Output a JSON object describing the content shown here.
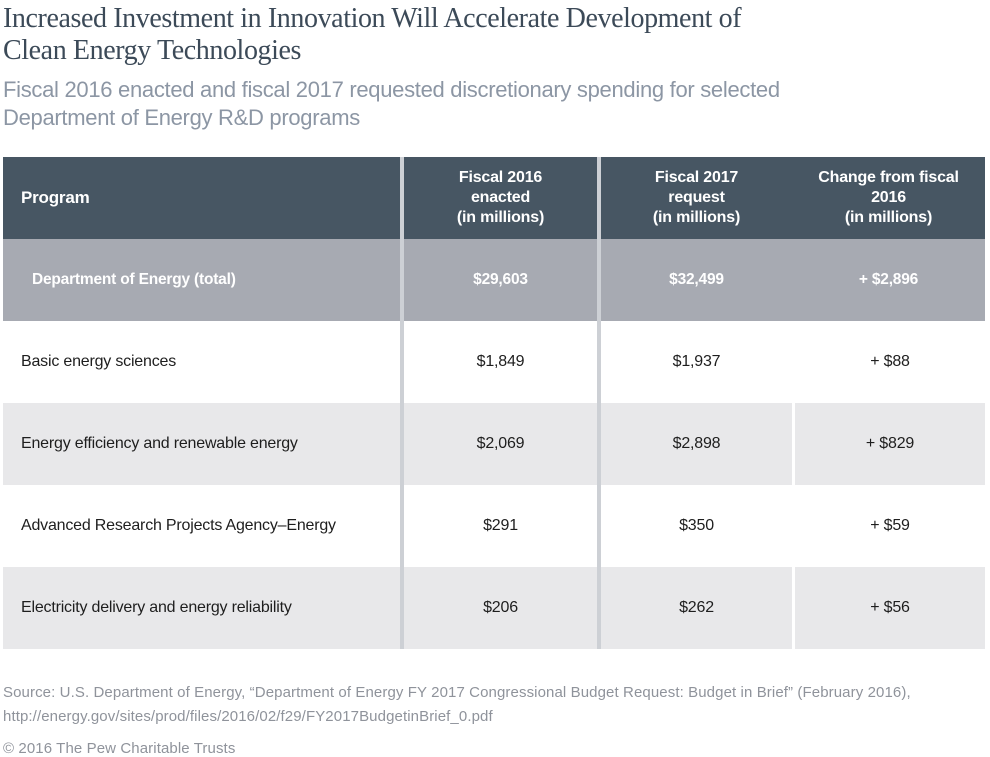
{
  "header": {
    "title_line1": "Increased Investment in Innovation Will Accelerate Development of",
    "title_line2": "Clean Energy Technologies",
    "subtitle_line1": "Fiscal 2016 enacted and fiscal 2017 requested discretionary spending for selected",
    "subtitle_line2": "Department of Energy R&D programs"
  },
  "table": {
    "columns": [
      {
        "label_lines": [
          "Program"
        ]
      },
      {
        "label_lines": [
          "Fiscal 2016",
          "enacted",
          "(in millions)"
        ]
      },
      {
        "label_lines": [
          "Fiscal 2017",
          "request",
          "(in millions)"
        ]
      },
      {
        "label_lines": [
          "Change from fiscal",
          "2016",
          "(in millions)"
        ]
      }
    ],
    "total_row": {
      "program": "Department of Energy (total)",
      "fy2016": "$29,603",
      "fy2017": "$32,499",
      "change": "+ $2,896"
    },
    "rows": [
      {
        "program": "Basic energy sciences",
        "fy2016": "$1,849",
        "fy2017": "$1,937",
        "change": "+ $88"
      },
      {
        "program": "Energy efficiency and renewable energy",
        "fy2016": "$2,069",
        "fy2017": "$2,898",
        "change": "+ $829"
      },
      {
        "program": "Advanced Research Projects Agency–Energy",
        "fy2016": "$291",
        "fy2017": "$350",
        "change": "+ $59"
      },
      {
        "program": "Electricity delivery and energy reliability",
        "fy2016": "$206",
        "fy2017": "$262",
        "change": "+ $56"
      }
    ]
  },
  "chart_data": {
    "type": "table",
    "title": "Increased Investment in Innovation Will Accelerate Development of Clean Energy Technologies",
    "subtitle": "Fiscal 2016 enacted and fiscal 2017 requested discretionary spending for selected Department of Energy R&D programs",
    "columns": [
      "Program",
      "Fiscal 2016 enacted (in millions)",
      "Fiscal 2017 request (in millions)",
      "Change from fiscal 2016 (in millions)"
    ],
    "rows": [
      [
        "Department of Energy (total)",
        29603,
        32499,
        2896
      ],
      [
        "Basic energy sciences",
        1849,
        1937,
        88
      ],
      [
        "Energy efficiency and renewable energy",
        2069,
        2898,
        829
      ],
      [
        "Advanced Research Projects Agency–Energy",
        291,
        350,
        59
      ],
      [
        "Electricity delivery and energy reliability",
        206,
        262,
        56
      ]
    ],
    "units": "millions of US dollars"
  },
  "colors": {
    "title_text": "#3C4A58",
    "subtitle_text": "#8C96A4",
    "header_background": "#475663",
    "total_row_background": "#A7AAB2",
    "alt_row_background": "#E8E8EA",
    "divider": "#CDD0D5",
    "body_text": "#1E1E1E",
    "footer_text": "#8F939B"
  },
  "footer": {
    "source_line1": "Source: U.S. Department of Energy, “Department of Energy FY 2017 Congressional Budget Request: Budget in Brief” (February 2016),",
    "source_line2": "http://energy.gov/sites/prod/files/2016/02/f29/FY2017BudgetinBrief_0.pdf",
    "copyright": "© 2016 The Pew Charitable Trusts"
  }
}
